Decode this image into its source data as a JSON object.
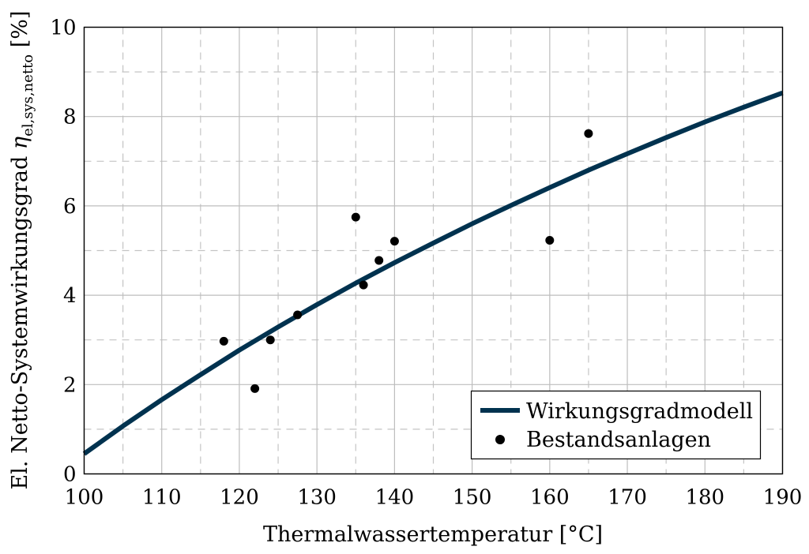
{
  "chart_data": {
    "type": "line",
    "title": "",
    "xlabel": "Thermalwassertemperatur [°C]",
    "ylabel": {
      "prefix": "El. Netto-Systemwirkungsgrad ",
      "symbol": "η",
      "subscript": "el,sys,netto",
      "suffix": " [%]"
    },
    "xlim": [
      100,
      190
    ],
    "ylim": [
      0,
      10
    ],
    "x_ticks": [
      "100",
      "110",
      "120",
      "130",
      "140",
      "150",
      "160",
      "170",
      "180",
      "190"
    ],
    "y_ticks": [
      "0",
      "2",
      "4",
      "6",
      "8",
      "10"
    ],
    "grid": {
      "major": true,
      "minor_dashed": true
    },
    "legend_position": "bottom-right",
    "series": [
      {
        "name": "Wirkungsgradmodell",
        "kind": "line",
        "color": "#00324f",
        "x": [
          100,
          105,
          110,
          115,
          120,
          125,
          130,
          135,
          140,
          145,
          150,
          155,
          160,
          165,
          170,
          175,
          180,
          185,
          190
        ],
        "y": [
          0.45,
          1.07,
          1.66,
          2.22,
          2.77,
          3.29,
          3.79,
          4.27,
          4.73,
          5.17,
          5.6,
          6.01,
          6.41,
          6.8,
          7.17,
          7.53,
          7.88,
          8.21,
          8.53
        ]
      },
      {
        "name": "Bestandsanlagen",
        "kind": "scatter",
        "color": "#000000",
        "x": [
          118,
          122,
          124,
          127.5,
          135,
          136,
          138,
          140,
          160,
          165
        ],
        "y": [
          2.97,
          1.91,
          3.0,
          3.56,
          5.75,
          4.23,
          4.78,
          5.21,
          5.23,
          7.62
        ]
      }
    ]
  }
}
